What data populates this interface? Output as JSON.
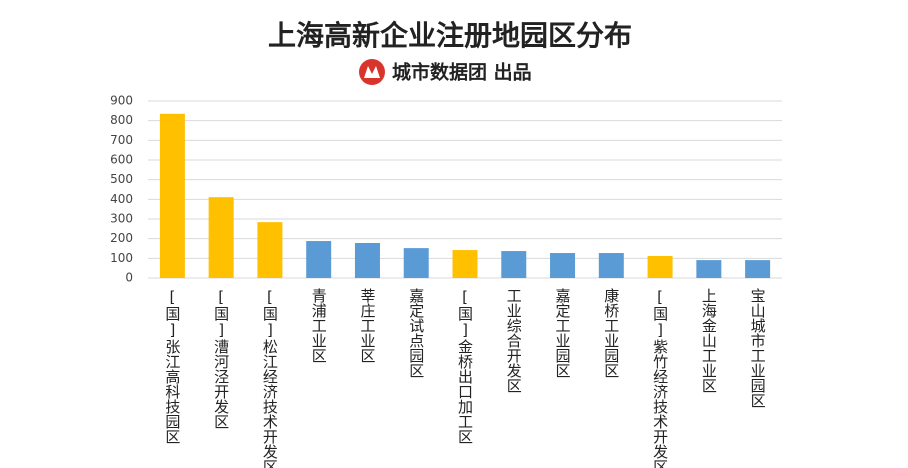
{
  "chart_data": {
    "type": "bar",
    "title": "上海高新企业注册地园区分布",
    "subtitle": "城市数据团  出品",
    "categories": [
      "[国]张江高科技园区",
      "[国]漕河泾开发区",
      "[国]松江经济技术开发区",
      "青浦工业区",
      "莘庄工业区",
      "嘉定试点园区",
      "[国]金桥出口加工区",
      "工业综合开发区",
      "嘉定工业园区",
      "康桥工业园区",
      "[国]紫竹经济技术开发区",
      "上海金山工业区",
      "宝山城市工业园区"
    ],
    "values": [
      835,
      411,
      284,
      188,
      178,
      152,
      142,
      137,
      127,
      127,
      112,
      91,
      91
    ],
    "colors": [
      "#ffc000",
      "#ffc000",
      "#ffc000",
      "#5b9bd5",
      "#5b9bd5",
      "#5b9bd5",
      "#ffc000",
      "#5b9bd5",
      "#5b9bd5",
      "#5b9bd5",
      "#ffc000",
      "#5b9bd5",
      "#5b9bd5"
    ],
    "ylim": [
      0,
      900
    ],
    "yticks": [
      0,
      100,
      200,
      300,
      400,
      500,
      600,
      700,
      800,
      900
    ],
    "grid": true
  }
}
